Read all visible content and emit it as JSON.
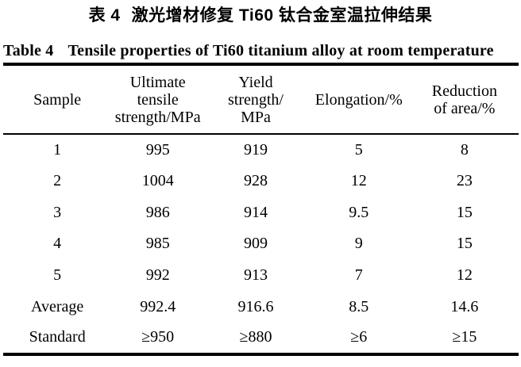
{
  "page": {
    "title_cn": {
      "label": "表 4",
      "text": "激光增材修复 Ti60 钛合金室温拉伸结果"
    },
    "caption_en": {
      "label": "Table 4",
      "text": "Tensile properties of Ti60 titanium alloy at room temperature"
    },
    "colors": {
      "text": "#000000",
      "background": "#ffffff",
      "rule": "#000000"
    }
  },
  "table": {
    "columns": [
      {
        "name": "Sample",
        "lines": [
          "Sample"
        ]
      },
      {
        "name": "Ultimate tensile strength/MPa",
        "lines": [
          "Ultimate",
          "tensile",
          "strength/MPa"
        ]
      },
      {
        "name": "Yield strength/MPa",
        "lines": [
          "Yield",
          "strength/",
          "MPa"
        ]
      },
      {
        "name": "Elongation/%",
        "lines": [
          "Elongation/%"
        ]
      },
      {
        "name": "Reduction of area/%",
        "lines": [
          "Reduction",
          "of area/%"
        ]
      }
    ],
    "rows": [
      {
        "cells": [
          "1",
          "995",
          "919",
          "5",
          "8"
        ]
      },
      {
        "cells": [
          "2",
          "1004",
          "928",
          "12",
          "23"
        ]
      },
      {
        "cells": [
          "3",
          "986",
          "914",
          "9.5",
          "15"
        ]
      },
      {
        "cells": [
          "4",
          "985",
          "909",
          "9",
          "15"
        ]
      },
      {
        "cells": [
          "5",
          "992",
          "913",
          "7",
          "12"
        ]
      },
      {
        "cells": [
          "Average",
          "992.4",
          "916.6",
          "8.5",
          "14.6"
        ]
      },
      {
        "cells": [
          "Standard",
          "≥950",
          "≥880",
          "≥6",
          "≥15"
        ]
      }
    ]
  }
}
